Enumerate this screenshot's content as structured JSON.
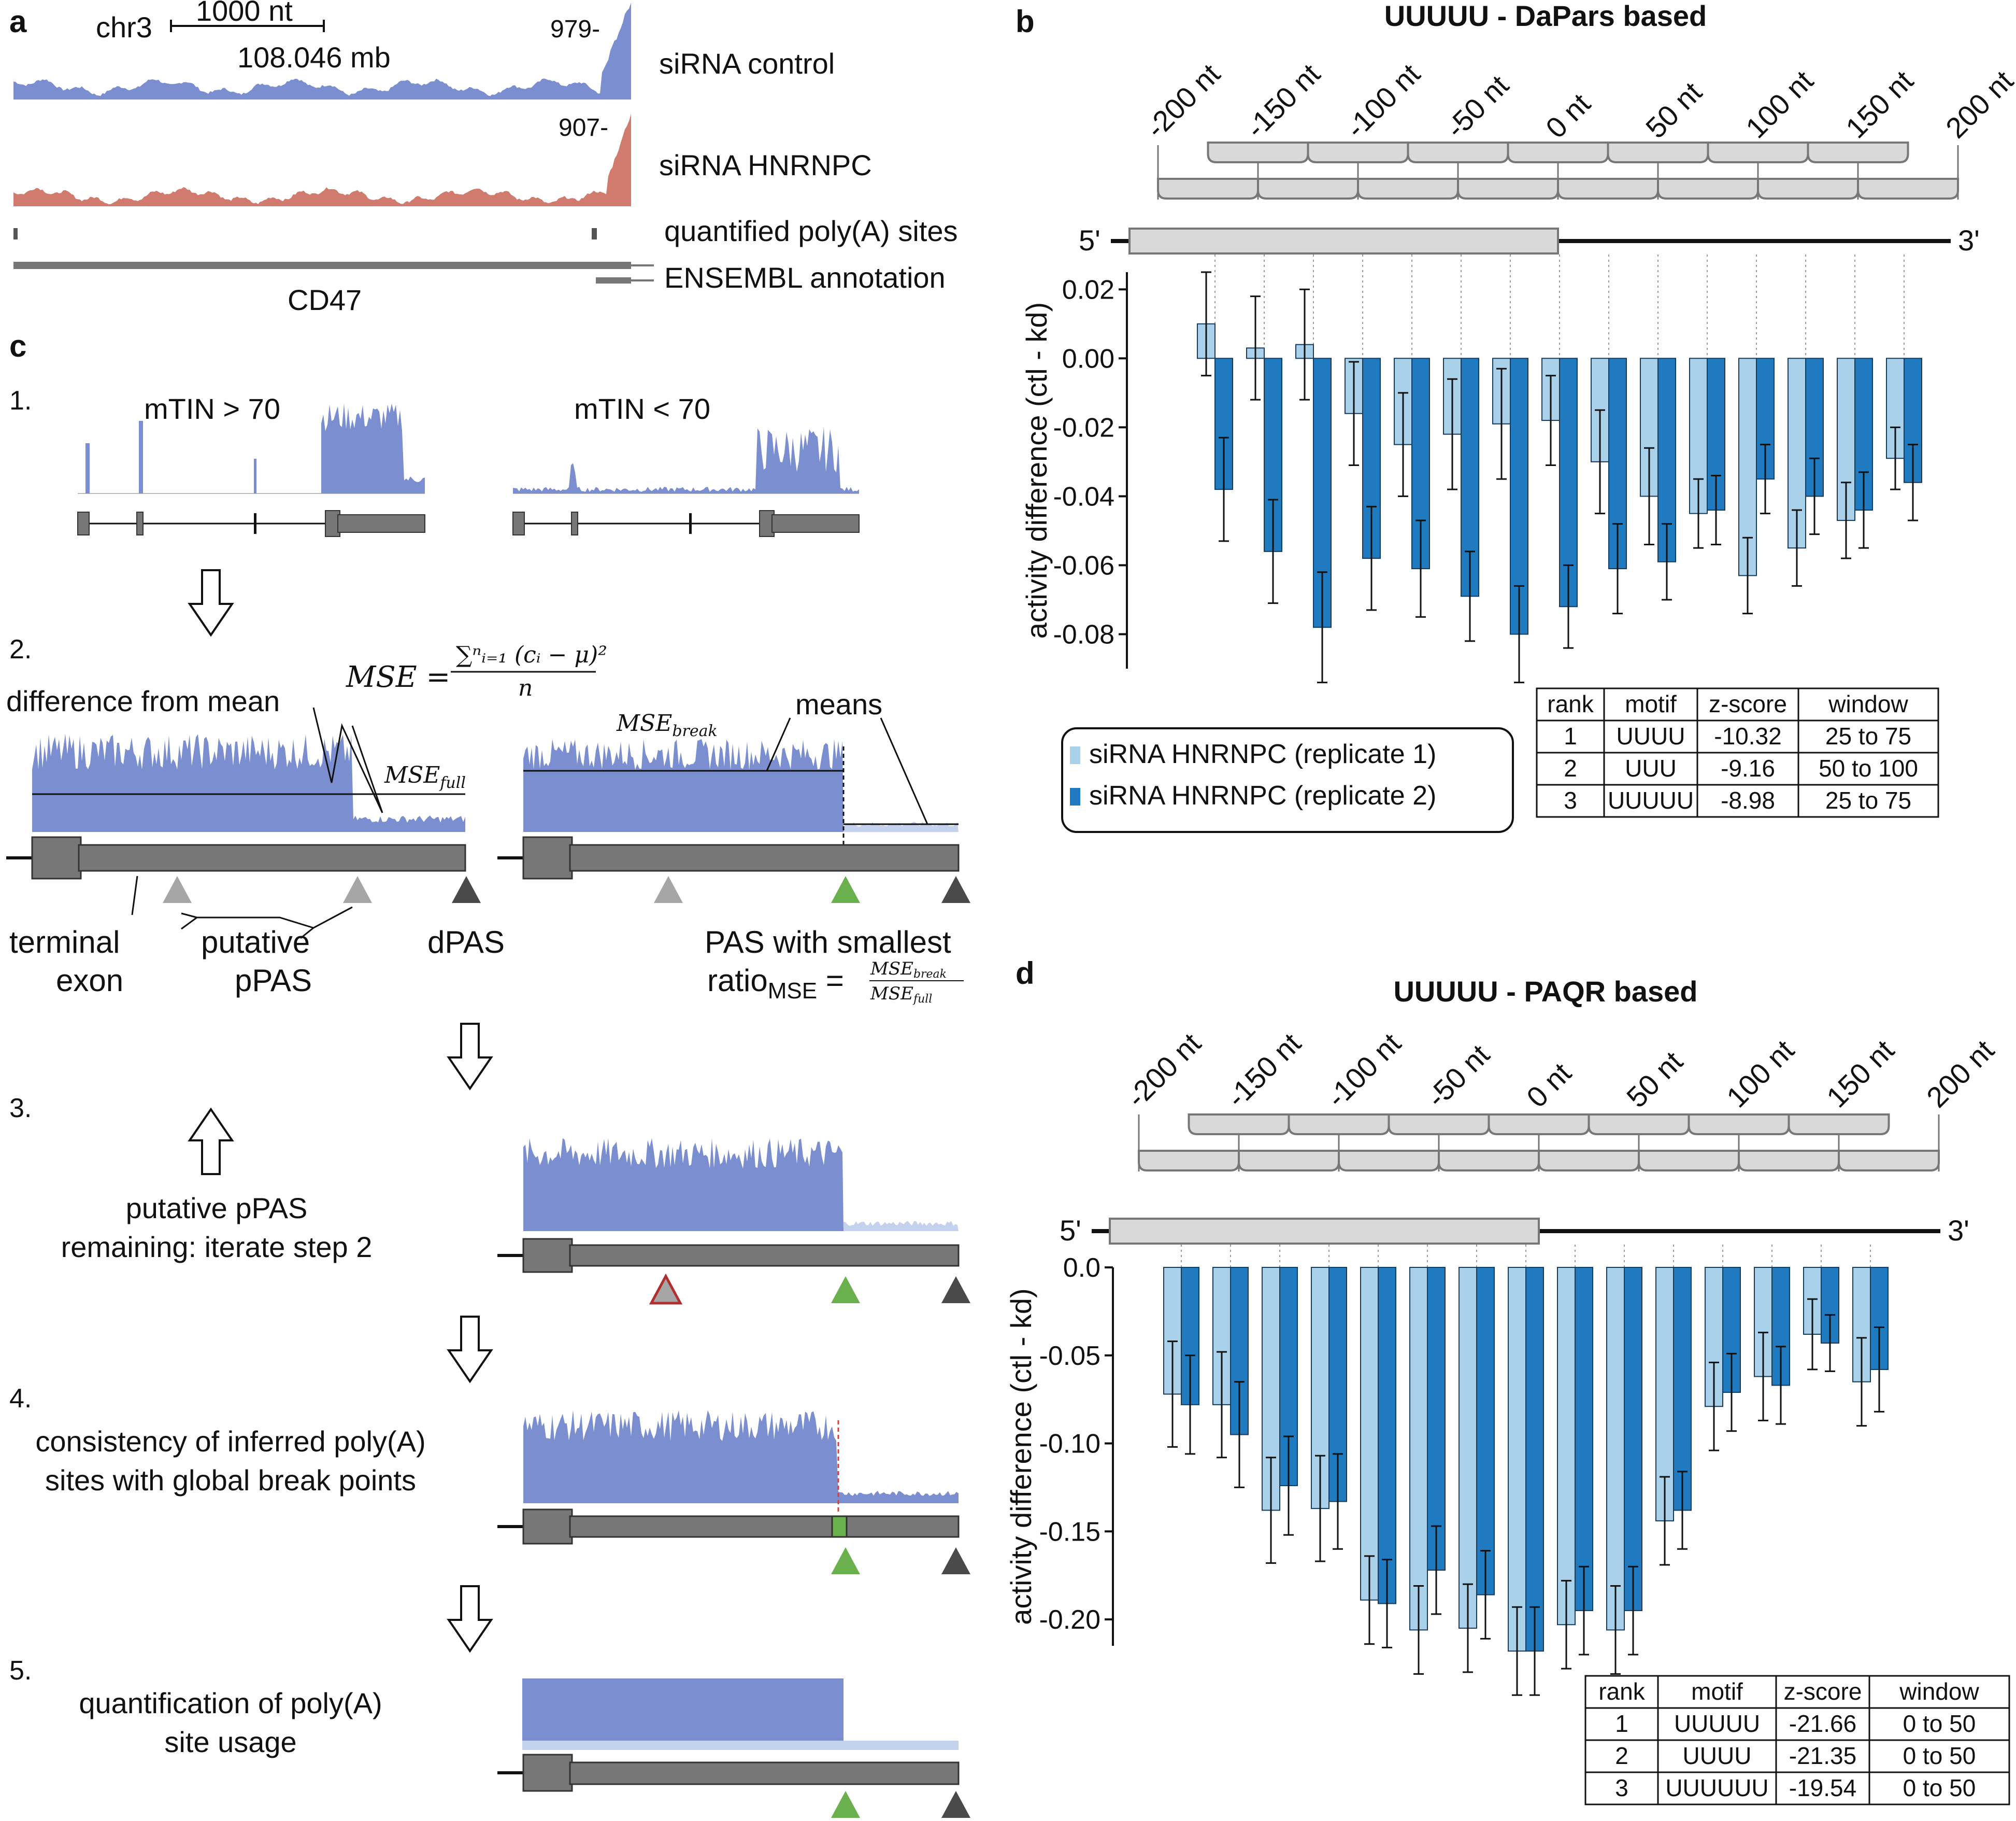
{
  "colors": {
    "track_blue": "#7b8fd0",
    "track_red": "#d07b6e",
    "track_light": "#c5d2ee",
    "rep1": "#a9d2ea",
    "rep2": "#1f7ac0",
    "gene_grey": "#777777",
    "window_fill": "#d9d9d9",
    "green": "#6ab04c",
    "dark_tri": "#4a4a4a",
    "light_tri": "#a6a6a6",
    "red_tri": "#b03030"
  },
  "panel_a": {
    "label": "a",
    "chrom": "chr3",
    "scale_text": "1000 nt",
    "position": "108.046 mb",
    "max_control": "979",
    "max_hnrnpc": "907",
    "track_control": "siRNA control",
    "track_hnrnpc": "siRNA HNRNPC",
    "track_sites": "quantified poly(A) sites",
    "track_annotation": "ENSEMBL annotation",
    "gene": "CD47"
  },
  "panel_c": {
    "label": "c",
    "step1_num": "1.",
    "mtin_high": "mTIN > 70",
    "mtin_low": "mTIN < 70",
    "step2_num": "2.",
    "mse_formula_lhs": "MSE =",
    "mse_formula_num": "∑ⁿᵢ₌₁ (cᵢ − μ)²",
    "mse_formula_den": "n",
    "diff_from_mean": "difference from mean",
    "mse_full": "MSE",
    "mse_full_sub": "full",
    "mse_break": "MSE",
    "mse_break_sub": "break",
    "means": "means",
    "terminal": "terminal",
    "exon": "exon",
    "putative": "putative",
    "ppas": "pPAS",
    "dpas": "dPAS",
    "pas_smallest": "PAS with smallest",
    "ratio": "ratio",
    "ratio_sub": "MSE",
    "step3_num": "3.",
    "step3_line1": "putative pPAS",
    "step3_line2": "remaining: iterate step 2",
    "step4_num": "4.",
    "step4_line1": "consistency of inferred poly(A)",
    "step4_line2": "sites with global break points",
    "step5_num": "5.",
    "step5_line1": "quantification of poly(A)",
    "step5_line2": "site usage"
  },
  "panel_b": {
    "label": "b",
    "legend": {
      "rep1": "siRNA HNRNPC (replicate 1)",
      "rep2": "siRNA HNRNPC (replicate 2)"
    },
    "table": {
      "headers": [
        "rank",
        "motif",
        "z-score",
        "window"
      ],
      "rows": [
        [
          "1",
          "UUUU",
          "-10.32",
          "25 to 75"
        ],
        [
          "2",
          "UUU",
          "-9.16",
          "50 to 100"
        ],
        [
          "3",
          "UUUUU",
          "-8.98",
          "25 to 75"
        ]
      ]
    }
  },
  "panel_d": {
    "label": "d",
    "table": {
      "headers": [
        "rank",
        "motif",
        "z-score",
        "window"
      ],
      "rows": [
        [
          "1",
          "UUUUU",
          "-21.66",
          "0 to 50"
        ],
        [
          "2",
          "UUUU",
          "-21.35",
          "0 to 50"
        ],
        [
          "3",
          "UUUUUU",
          "-19.54",
          "0 to 50"
        ]
      ]
    }
  },
  "chart_data": [
    {
      "type": "bar",
      "title": "UUUUU - DaPars based",
      "xlabel": "",
      "ylabel": "activity difference (ctl - kd)",
      "ylim": [
        -0.09,
        0.025
      ],
      "yticks": [
        0.02,
        0.0,
        -0.02,
        -0.04,
        -0.06,
        -0.08
      ],
      "ytick_labels": [
        "0.02",
        "0.00",
        "-0.02",
        "-0.04",
        "-0.06",
        "-0.08"
      ],
      "position_labels": [
        "-200 nt",
        "-150 nt",
        "-100 nt",
        "-50 nt",
        "0 nt",
        "50 nt",
        "100 nt",
        "150 nt",
        "200 nt"
      ],
      "five_prime": "5'",
      "three_prime": "3'",
      "categories": [
        "-200 to -150",
        "-175 to -125",
        "-150 to -100",
        "-125 to -75",
        "-100 to -50",
        "-75 to -25",
        "-50 to 0",
        "-25 to 25",
        "0 to 50",
        "25 to 75",
        "50 to 100",
        "75 to 125",
        "100 to 150",
        "125 to 175",
        "150 to 200"
      ],
      "series": [
        {
          "name": "siRNA HNRNPC (replicate 1)",
          "values": [
            0.01,
            0.003,
            0.004,
            -0.016,
            -0.025,
            -0.022,
            -0.019,
            -0.018,
            -0.03,
            -0.04,
            -0.045,
            -0.063,
            -0.055,
            -0.047,
            -0.029
          ],
          "errors": [
            0.015,
            0.015,
            0.016,
            0.015,
            0.015,
            0.016,
            0.016,
            0.013,
            0.015,
            0.014,
            0.01,
            0.011,
            0.011,
            0.011,
            0.009
          ]
        },
        {
          "name": "siRNA HNRNPC (replicate 2)",
          "values": [
            -0.038,
            -0.056,
            -0.078,
            -0.058,
            -0.061,
            -0.069,
            -0.08,
            -0.072,
            -0.061,
            -0.059,
            -0.044,
            -0.035,
            -0.04,
            -0.044,
            -0.036
          ],
          "errors": [
            0.015,
            0.015,
            0.016,
            0.015,
            0.014,
            0.013,
            0.014,
            0.012,
            0.013,
            0.011,
            0.01,
            0.01,
            0.011,
            0.011,
            0.011
          ]
        }
      ]
    },
    {
      "type": "bar",
      "title": "UUUUU - PAQR based",
      "xlabel": "",
      "ylabel": "activity difference (ctl - kd)",
      "ylim": [
        -0.215,
        0.0
      ],
      "yticks": [
        0.0,
        -0.05,
        -0.1,
        -0.15,
        -0.2
      ],
      "ytick_labels": [
        "0.0",
        "-0.05",
        "-0.10",
        "-0.15",
        "-0.20"
      ],
      "position_labels": [
        "-200 nt",
        "-150 nt",
        "-100 nt",
        "-50 nt",
        "0 nt",
        "50 nt",
        "100 nt",
        "150 nt",
        "200 nt"
      ],
      "five_prime": "5'",
      "three_prime": "3'",
      "categories": [
        "-200 to -150",
        "-175 to -125",
        "-150 to -100",
        "-125 to -75",
        "-100 to -50",
        "-75 to -25",
        "-50 to 0",
        "-25 to 25",
        "0 to 50",
        "25 to 75",
        "50 to 100",
        "75 to 125",
        "100 to 150",
        "125 to 175",
        "150 to 200"
      ],
      "series": [
        {
          "name": "siRNA HNRNPC (replicate 1)",
          "values": [
            -0.072,
            -0.078,
            -0.138,
            -0.137,
            -0.189,
            -0.206,
            -0.205,
            -0.218,
            -0.203,
            -0.206,
            -0.144,
            -0.079,
            -0.062,
            -0.038,
            -0.065
          ],
          "errors": [
            0.03,
            0.03,
            0.03,
            0.03,
            0.025,
            0.025,
            0.025,
            0.025,
            0.025,
            0.025,
            0.025,
            0.025,
            0.025,
            0.02,
            0.025
          ]
        },
        {
          "name": "siRNA HNRNPC (replicate 2)",
          "values": [
            -0.078,
            -0.095,
            -0.124,
            -0.133,
            -0.191,
            -0.172,
            -0.186,
            -0.218,
            -0.195,
            -0.195,
            -0.138,
            -0.071,
            -0.067,
            -0.043,
            -0.058
          ],
          "errors": [
            0.028,
            0.03,
            0.028,
            0.027,
            0.025,
            0.025,
            0.025,
            0.025,
            0.025,
            0.025,
            0.022,
            0.022,
            0.022,
            0.016,
            0.024
          ]
        }
      ]
    }
  ]
}
